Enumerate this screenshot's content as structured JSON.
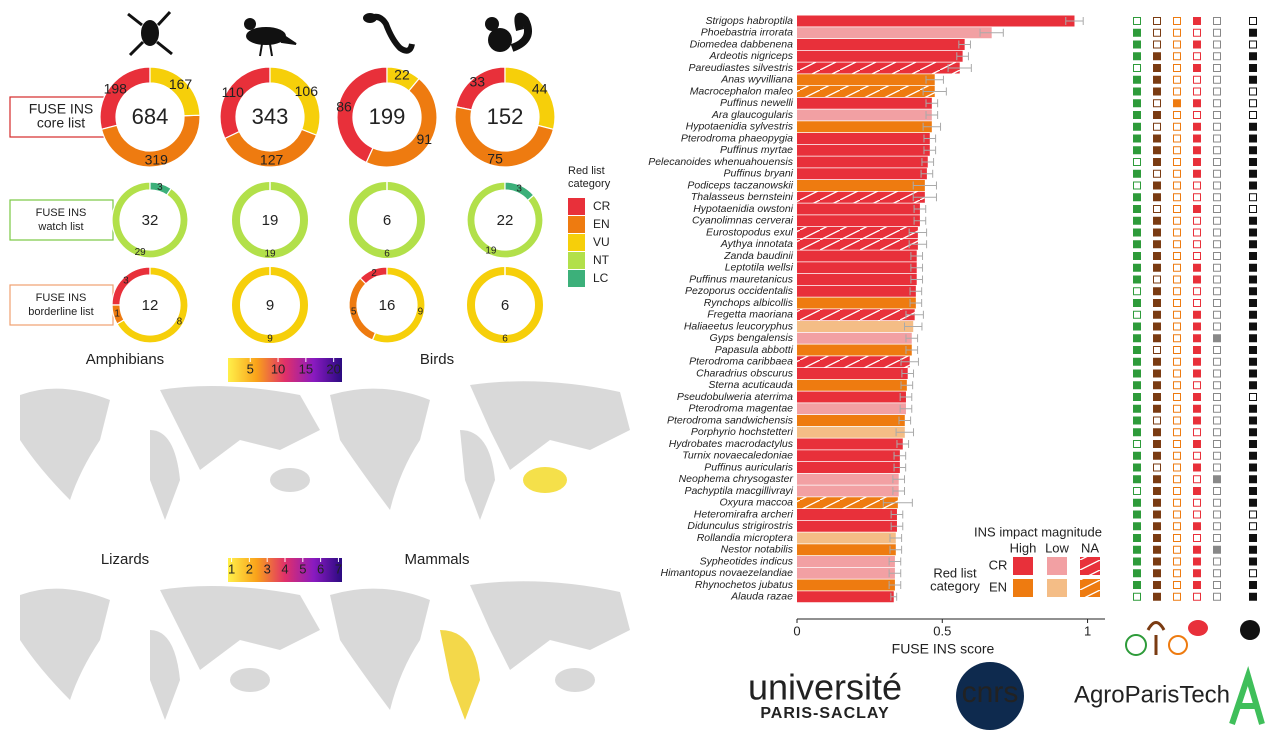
{
  "chart_data": [
    {
      "type": "donut",
      "categories": [
        "CR",
        "EN",
        "VU",
        "NT",
        "LC"
      ],
      "colors": [
        "#e8303a",
        "#ee7b10",
        "#f6cf0a",
        "#b2e04a",
        "#3cb07a"
      ],
      "legend_title": [
        "Red list",
        "category"
      ],
      "rows": [
        {
          "label": [
            "FUSE INS",
            "core list"
          ],
          "color": "#d42a2a",
          "totals": [
            684,
            343,
            199,
            152
          ],
          "values": [
            [
              198,
              319,
              167,
              null,
              null
            ],
            [
              110,
              127,
              106,
              null,
              null
            ],
            [
              86,
              91,
              22,
              null,
              null
            ],
            [
              33,
              75,
              44,
              null,
              null
            ]
          ]
        },
        {
          "label": [
            "FUSE INS",
            "watch list"
          ],
          "color": "#7ac943",
          "totals": [
            32,
            19,
            6,
            22
          ],
          "values": [
            [
              null,
              null,
              null,
              29,
              3
            ],
            [
              null,
              null,
              null,
              19,
              null
            ],
            [
              null,
              null,
              null,
              6,
              null
            ],
            [
              null,
              null,
              null,
              19,
              3
            ]
          ]
        },
        {
          "label": [
            "FUSE INS",
            "borderline list"
          ],
          "color": "#f0a070",
          "totals": [
            12,
            9,
            16,
            6
          ],
          "values": [
            [
              3,
              1,
              8,
              null,
              null
            ],
            [
              null,
              null,
              9,
              null,
              null
            ],
            [
              2,
              5,
              9,
              null,
              null
            ],
            [
              null,
              null,
              6,
              null,
              null
            ]
          ]
        }
      ]
    },
    {
      "type": "map",
      "titles": [
        "Amphibians",
        "Birds"
      ],
      "colors": [
        "#fff04a",
        "#f9a21a",
        "#e0306a",
        "#8a1ac0",
        "#2a0a80"
      ],
      "clim": [
        1,
        21.5
      ],
      "ticks": [
        5,
        10,
        15,
        20
      ]
    },
    {
      "type": "map",
      "titles": [
        "Lizards",
        "Mammals"
      ],
      "colors": [
        "#fff04a",
        "#f9a21a",
        "#e0306a",
        "#8a1ac0",
        "#2a0a80"
      ],
      "clim": [
        0.8,
        7.2
      ],
      "ticks": [
        1,
        2,
        3,
        4,
        5,
        6,
        7
      ]
    },
    {
      "type": "barh",
      "categories": [
        "Strigops habroptila",
        "Phoebastria irrorata",
        "Diomedea dabbenena",
        "Ardeotis nigriceps",
        "Pareudiastes silvestris",
        "Anas wyvilliana",
        "Macrocephalon maleo",
        "Puffinus newelli",
        "Ara glaucogularis",
        "Hypotaenidia sylvestris",
        "Pterodroma phaeopygia",
        "Puffinus myrtae",
        "Pelecanoides whenuahouensis",
        "Puffinus bryani",
        "Podiceps taczanowskii",
        "Thalasseus bernsteini",
        "Hypotaenidia owstoni",
        "Cyanolimnas cerverai",
        "Eurostopodus exul",
        "Aythya innotata",
        "Zanda baudinii",
        "Leptotila wellsi",
        "Puffinus mauretanicus",
        "Pezoporus occidentalis",
        "Rynchops albicollis",
        "Fregetta maoriana",
        "Haliaeetus leucoryphus",
        "Gyps bengalensis",
        "Papasula abbotti",
        "Pterodroma caribbaea",
        "Charadrius obscurus",
        "Sterna acuticauda",
        "Pseudobulweria aterrima",
        "Pterodroma magentae",
        "Pterodroma sandwichensis",
        "Porphyrio hochstetteri",
        "Hydrobates macrodactylus",
        "Turnix novaecaledoniae",
        "Puffinus auricularis",
        "Neophema chrysogaster",
        "Pachyptila macgillivrayi",
        "Oxyura maccoa",
        "Heteromirafra archeri",
        "Didunculus strigirostris",
        "Rollandia microptera",
        "Nestor notabilis",
        "Sypheotides indicus",
        "Himantopus novaezelandiae",
        "Rhynochetos jubatus",
        "Alauda razae"
      ],
      "values": [
        0.955,
        0.67,
        0.577,
        0.57,
        0.56,
        0.474,
        0.474,
        0.464,
        0.464,
        0.464,
        0.457,
        0.457,
        0.45,
        0.447,
        0.44,
        0.44,
        0.423,
        0.423,
        0.416,
        0.416,
        0.412,
        0.412,
        0.412,
        0.409,
        0.409,
        0.405,
        0.4,
        0.395,
        0.395,
        0.388,
        0.381,
        0.378,
        0.375,
        0.375,
        0.371,
        0.371,
        0.364,
        0.354,
        0.354,
        0.35,
        0.35,
        0.347,
        0.344,
        0.344,
        0.34,
        0.34,
        0.337,
        0.337,
        0.337,
        0.333
      ],
      "errors": [
        0.03,
        0.04,
        0.02,
        0.02,
        0.04,
        0.03,
        0.04,
        0.02,
        0.02,
        0.03,
        0.02,
        0.02,
        0.02,
        0.02,
        0.04,
        0.04,
        0.02,
        0.02,
        0.03,
        0.03,
        0.02,
        0.02,
        0.02,
        0.02,
        0.02,
        0.03,
        0.03,
        0.02,
        0.02,
        0.03,
        0.02,
        0.02,
        0.02,
        0.02,
        0.02,
        0.03,
        0.02,
        0.02,
        0.02,
        0.02,
        0.02,
        0.05,
        0.02,
        0.02,
        0.02,
        0.02,
        0.02,
        0.02,
        0.02,
        0.01
      ],
      "red_list": [
        "CR",
        "CR",
        "CR",
        "CR",
        "CR",
        "EN",
        "EN",
        "CR",
        "CR",
        "EN",
        "CR",
        "CR",
        "CR",
        "CR",
        "EN",
        "CR",
        "CR",
        "CR",
        "CR",
        "CR",
        "CR",
        "CR",
        "CR",
        "CR",
        "EN",
        "CR",
        "EN",
        "CR",
        "EN",
        "CR",
        "CR",
        "EN",
        "CR",
        "CR",
        "EN",
        "EN",
        "CR",
        "CR",
        "CR",
        "CR",
        "CR",
        "EN",
        "CR",
        "CR",
        "EN",
        "EN",
        "CR",
        "CR",
        "EN",
        "CR"
      ],
      "impact": [
        "High",
        "Low",
        "High",
        "High",
        "NA",
        "High",
        "NA",
        "High",
        "Low",
        "High",
        "High",
        "High",
        "High",
        "High",
        "High",
        "NA",
        "High",
        "High",
        "NA",
        "NA",
        "High",
        "High",
        "High",
        "High",
        "High",
        "NA",
        "Low",
        "Low",
        "High",
        "NA",
        "High",
        "High",
        "High",
        "Low",
        "High",
        "Low",
        "High",
        "High",
        "High",
        "Low",
        "Low",
        "NA",
        "High",
        "High",
        "Low",
        "High",
        "Low",
        "Low",
        "High",
        "High"
      ],
      "colors": {
        "CR": {
          "High": "#e8303a",
          "Low": "#f2a0a3"
        },
        "EN": {
          "High": "#ee7b10",
          "Low": "#f4bd86"
        }
      },
      "xlim": [
        0,
        1.06
      ],
      "xticks": [
        0,
        0.5,
        1
      ],
      "xlabel": "FUSE INS score",
      "legend": {
        "title": "INS impact magnitude",
        "impacts": [
          "High",
          "Low",
          "NA"
        ],
        "red_list_title": [
          "Red list",
          "category"
        ],
        "red_list": [
          "CR",
          "EN"
        ]
      }
    },
    {
      "type": "matrix",
      "colors": [
        "#2e9b3a",
        "#7a3b12",
        "#ee7b10",
        "#e8303a",
        "#888888",
        "#111111"
      ],
      "values": [
        [
          0,
          0,
          0,
          1,
          0,
          0
        ],
        [
          1,
          0,
          0,
          0,
          0,
          1
        ],
        [
          1,
          0,
          0,
          1,
          0,
          0
        ],
        [
          1,
          1,
          0,
          0,
          0,
          1
        ],
        [
          0,
          1,
          0,
          1,
          0,
          1
        ],
        [
          1,
          1,
          0,
          0,
          0,
          1
        ],
        [
          1,
          1,
          0,
          0,
          0,
          0
        ],
        [
          1,
          0,
          1,
          1,
          0,
          0
        ],
        [
          1,
          1,
          0,
          0,
          0,
          0
        ],
        [
          1,
          0,
          0,
          1,
          0,
          1
        ],
        [
          1,
          1,
          0,
          1,
          0,
          1
        ],
        [
          1,
          1,
          0,
          1,
          0,
          1
        ],
        [
          0,
          1,
          0,
          1,
          0,
          1
        ],
        [
          1,
          0,
          0,
          1,
          0,
          1
        ],
        [
          0,
          1,
          0,
          0,
          0,
          1
        ],
        [
          1,
          1,
          0,
          0,
          0,
          0
        ],
        [
          1,
          0,
          0,
          1,
          0,
          0
        ],
        [
          1,
          1,
          0,
          0,
          0,
          1
        ],
        [
          1,
          1,
          0,
          0,
          0,
          1
        ],
        [
          1,
          1,
          0,
          0,
          0,
          1
        ],
        [
          1,
          1,
          0,
          0,
          0,
          1
        ],
        [
          1,
          1,
          0,
          1,
          0,
          1
        ],
        [
          1,
          0,
          0,
          1,
          0,
          1
        ],
        [
          0,
          1,
          0,
          0,
          0,
          1
        ],
        [
          1,
          1,
          0,
          0,
          0,
          1
        ],
        [
          0,
          1,
          0,
          1,
          0,
          1
        ],
        [
          1,
          1,
          0,
          1,
          0,
          1
        ],
        [
          1,
          1,
          0,
          1,
          1,
          1
        ],
        [
          1,
          0,
          0,
          1,
          0,
          1
        ],
        [
          1,
          1,
          0,
          1,
          0,
          1
        ],
        [
          1,
          1,
          0,
          1,
          0,
          1
        ],
        [
          1,
          1,
          0,
          0,
          0,
          1
        ],
        [
          1,
          1,
          0,
          1,
          0,
          0
        ],
        [
          1,
          1,
          0,
          1,
          0,
          1
        ],
        [
          1,
          0,
          0,
          1,
          0,
          1
        ],
        [
          1,
          1,
          0,
          0,
          0,
          1
        ],
        [
          0,
          1,
          0,
          1,
          0,
          1
        ],
        [
          1,
          1,
          0,
          0,
          0,
          1
        ],
        [
          1,
          0,
          0,
          1,
          0,
          1
        ],
        [
          1,
          1,
          0,
          0,
          1,
          1
        ],
        [
          0,
          1,
          0,
          1,
          0,
          1
        ],
        [
          1,
          1,
          0,
          0,
          0,
          1
        ],
        [
          1,
          1,
          0,
          0,
          0,
          0
        ],
        [
          1,
          1,
          0,
          1,
          0,
          0
        ],
        [
          1,
          1,
          0,
          0,
          0,
          1
        ],
        [
          1,
          1,
          0,
          1,
          1,
          1
        ],
        [
          1,
          1,
          0,
          1,
          0,
          1
        ],
        [
          1,
          1,
          0,
          1,
          0,
          0
        ],
        [
          1,
          1,
          0,
          1,
          0,
          1
        ],
        [
          0,
          1,
          0,
          0,
          0,
          1
        ]
      ]
    }
  ],
  "logos": {
    "saclay": [
      "université",
      "PARIS-SACLAY"
    ],
    "cnrs": "cnrs",
    "agro": "AgroParisTech"
  }
}
